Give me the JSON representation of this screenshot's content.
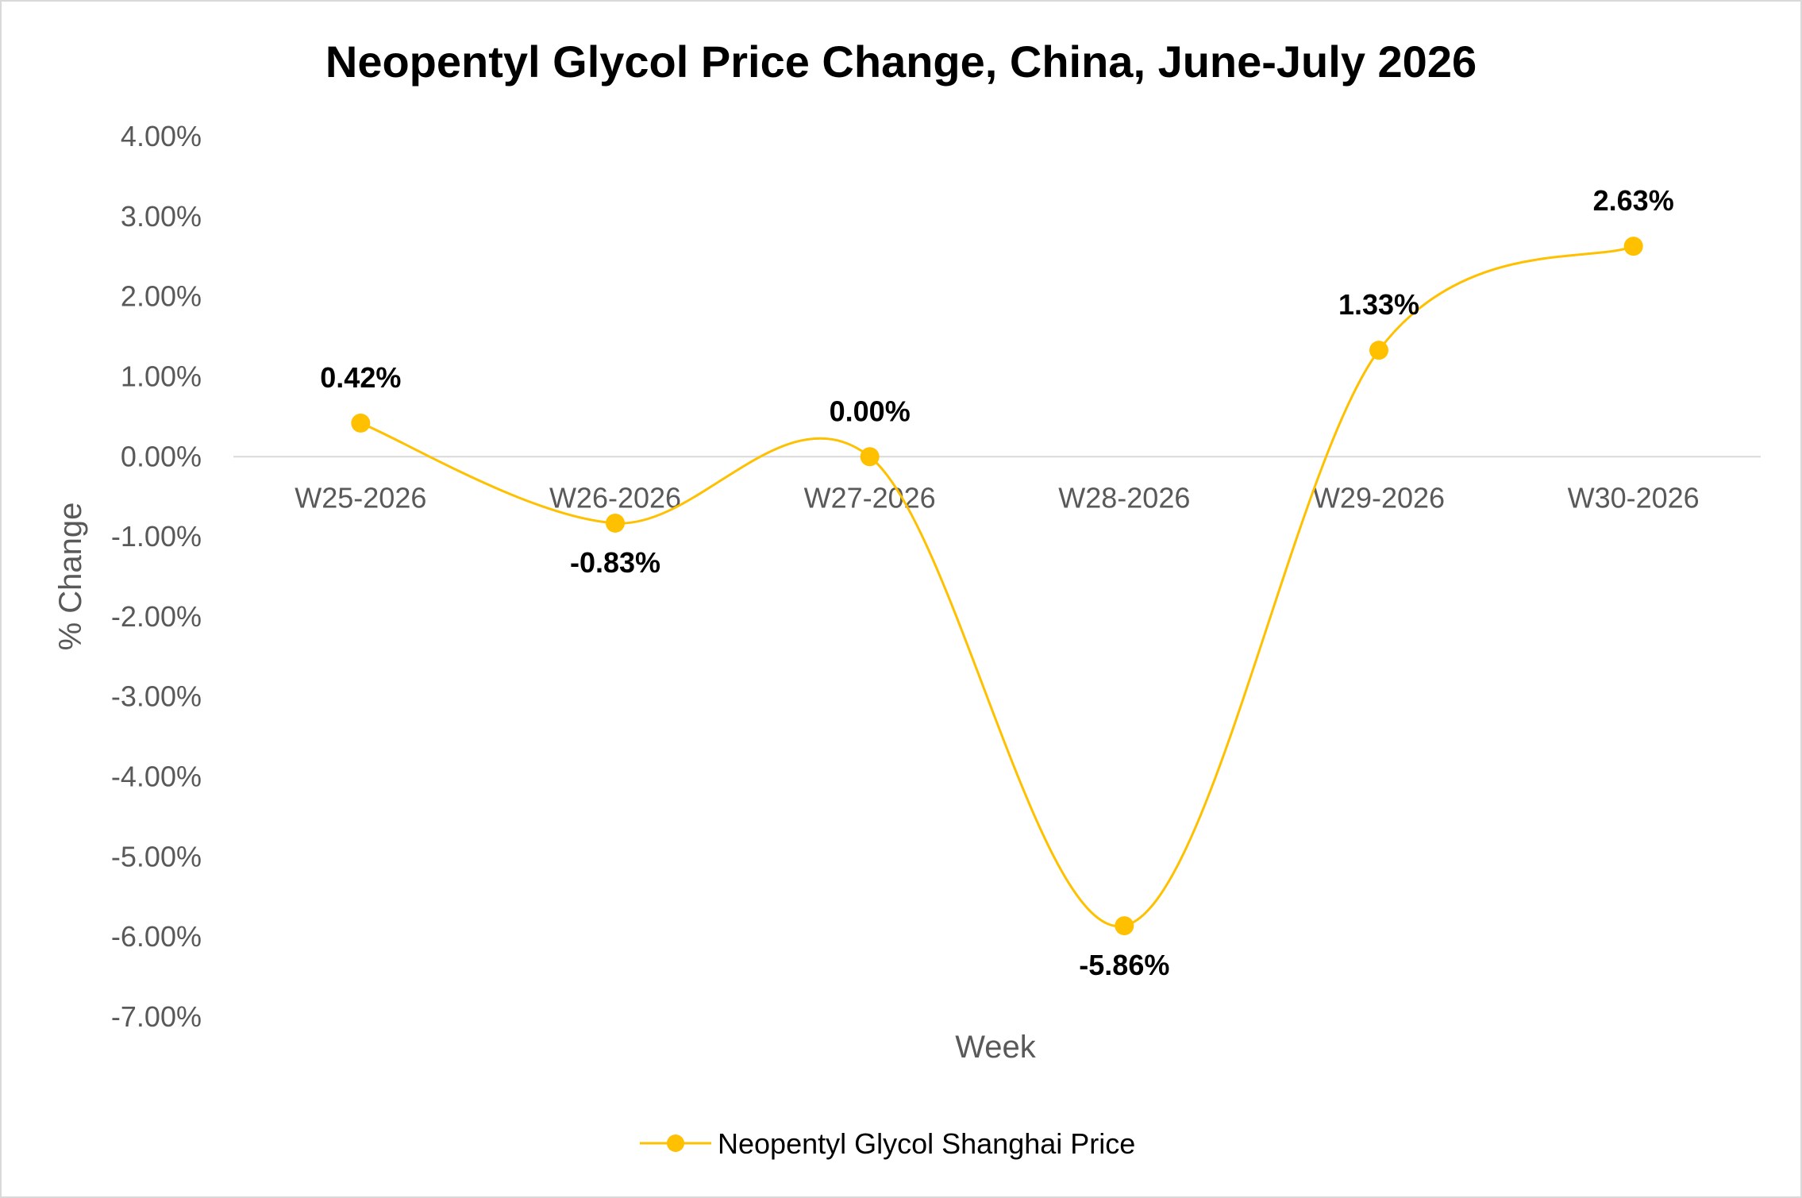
{
  "chart_data": {
    "type": "line",
    "title": "Neopentyl Glycol Price Change, China, June-July 2026",
    "xlabel": "Week",
    "ylabel": "% Change",
    "categories": [
      "W25-2026",
      "W26-2026",
      "W27-2026",
      "W28-2026",
      "W29-2026",
      "W30-2026"
    ],
    "series": [
      {
        "name": "Neopentyl Glycol Shanghai Price",
        "values": [
          0.42,
          -0.83,
          0.0,
          -5.86,
          1.33,
          2.63
        ],
        "labels": [
          "0.42%",
          "-0.83%",
          "0.00%",
          "-5.86%",
          "1.33%",
          "2.63%"
        ]
      }
    ],
    "ylim": [
      -7,
      4
    ],
    "y_ticks": [
      "4.00%",
      "3.00%",
      "2.00%",
      "1.00%",
      "0.00%",
      "-1.00%",
      "-2.00%",
      "-3.00%",
      "-4.00%",
      "-5.00%",
      "-6.00%",
      "-7.00%"
    ],
    "y_tick_values": [
      4,
      3,
      2,
      1,
      0,
      -1,
      -2,
      -3,
      -4,
      -5,
      -6,
      -7
    ],
    "smooth": true,
    "grid": false,
    "legend_position": "bottom",
    "colors": {
      "series": "#FFC000",
      "axis": "#D9D9D9",
      "tick_text": "#595959"
    }
  }
}
